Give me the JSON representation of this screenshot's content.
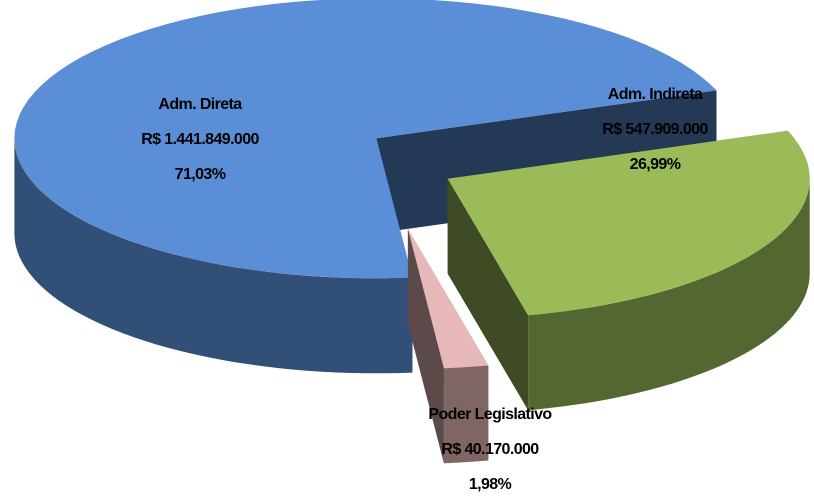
{
  "chart_data": {
    "type": "pie3d",
    "categories": [
      "Adm. Direta",
      "Adm. Indireta",
      "Poder Legislativo"
    ],
    "values": [
      1441849000,
      547909000,
      40170000
    ],
    "value_labels": [
      "R$ 1.441.849.000",
      "R$ 547.909.000",
      "R$ 40.170.000"
    ],
    "percentages": [
      71.03,
      26.99,
      1.98
    ],
    "percentage_labels": [
      "71,03%",
      "26,99%",
      "1,98%"
    ],
    "colors": [
      "#5a8fd8",
      "#9bbb59",
      "#e6b9b8"
    ]
  }
}
